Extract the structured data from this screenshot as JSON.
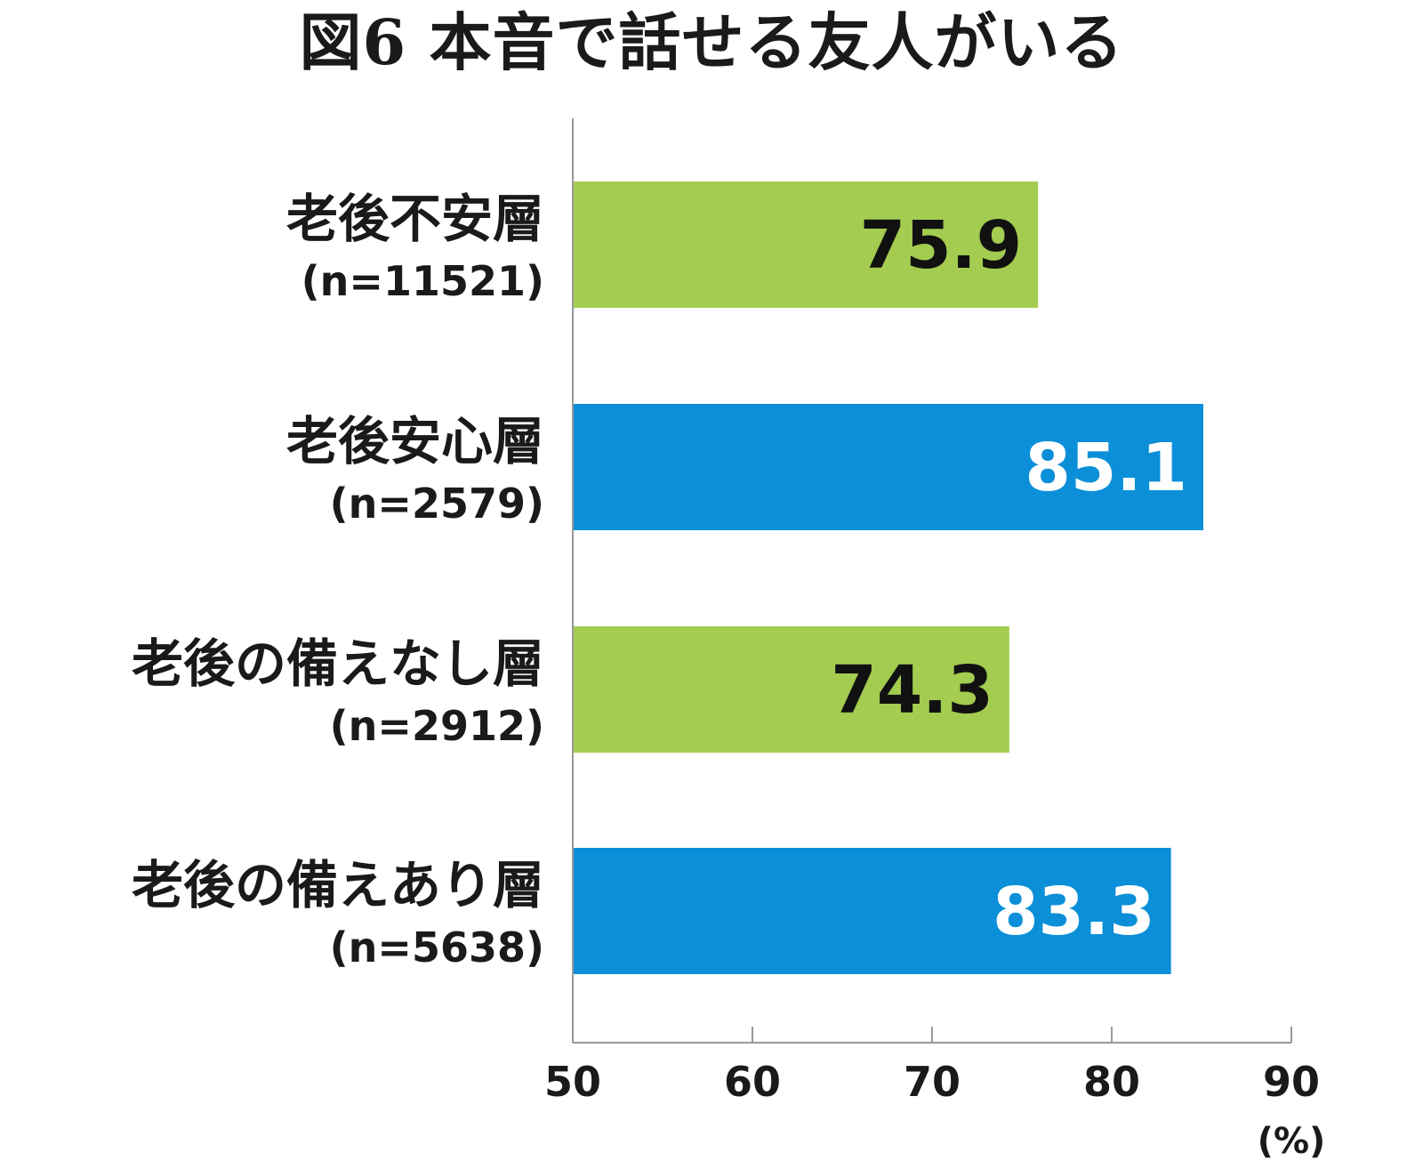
{
  "chart_data": {
    "type": "bar",
    "orientation": "horizontal",
    "title": "図6 本音で話せる友人がいる",
    "categories": [
      {
        "name": "老後不安層",
        "n": "(n=11521)"
      },
      {
        "name": "老後安心層",
        "n": "(n=2579)"
      },
      {
        "name": "老後の備えなし層",
        "n": "(n=2912)"
      },
      {
        "name": "老後の備えあり層",
        "n": "(n=5638)"
      }
    ],
    "values": [
      75.9,
      85.1,
      74.3,
      83.3
    ],
    "value_labels": [
      "75.9",
      "85.1",
      "74.3",
      "83.3"
    ],
    "bar_colors": [
      "#a3cc50",
      "#0a8fd8",
      "#a3cc50",
      "#0a8fd8"
    ],
    "value_label_colors": [
      "#111111",
      "#ffffff",
      "#111111",
      "#ffffff"
    ],
    "xlim": [
      50,
      90
    ],
    "xticks": [
      "50",
      "60",
      "70",
      "80",
      "90"
    ],
    "unit_label": "(%)",
    "grid": false,
    "legend": "none"
  },
  "colors": {
    "green": "#a3cc50",
    "blue": "#0a8fd8",
    "axis": "#999999"
  }
}
